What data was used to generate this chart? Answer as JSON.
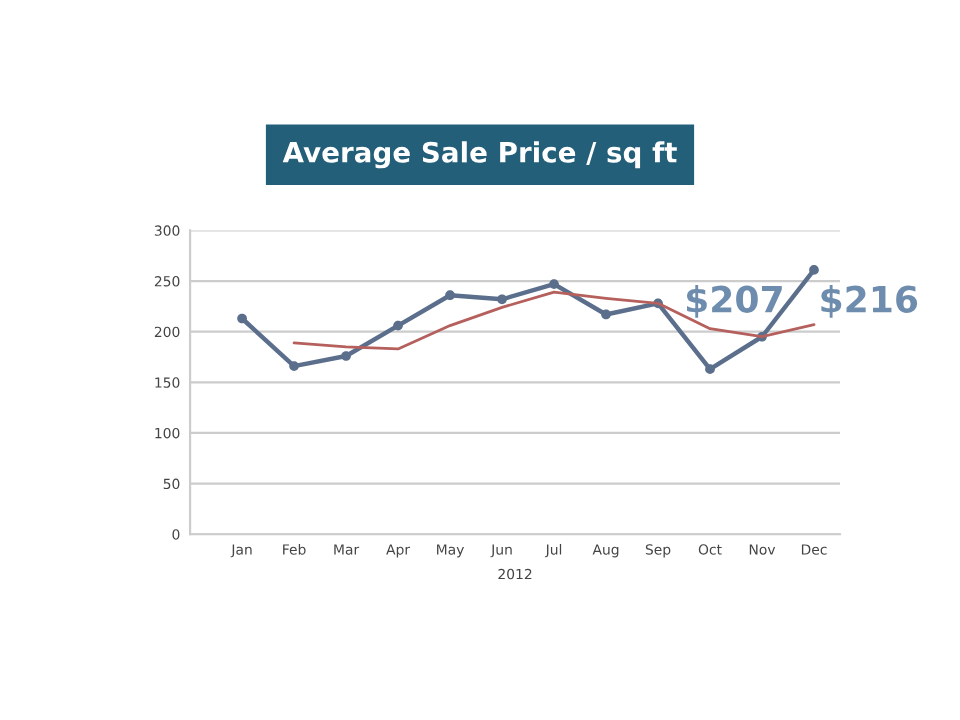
{
  "chart_data": {
    "type": "line",
    "title": "Average Sale Price / sq ft",
    "xlabel": "2012",
    "categories": [
      "Jan",
      "Feb",
      "Mar",
      "Apr",
      "May",
      "Jun",
      "Jul",
      "Aug",
      "Sep",
      "Oct",
      "Nov",
      "Dec"
    ],
    "series": [
      {
        "color": "#5b6f8c",
        "marker": "circle",
        "values": [
          213,
          166,
          176,
          206,
          236,
          232,
          247,
          217,
          228,
          163,
          195,
          261
        ]
      },
      {
        "color": "#b5605c",
        "marker": "none",
        "values": [
          null,
          189,
          185,
          183,
          206,
          224,
          239,
          233,
          228,
          203,
          195,
          207
        ]
      }
    ],
    "ylim": [
      0,
      300
    ],
    "yticks": [
      0,
      50,
      100,
      150,
      200,
      250,
      300
    ],
    "grid": "y",
    "legend": false,
    "annotations": [
      "$207",
      "$216"
    ]
  }
}
